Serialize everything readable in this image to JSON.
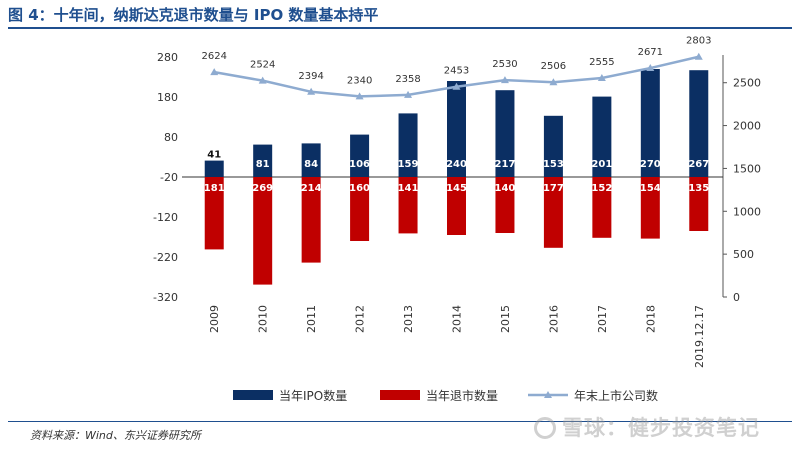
{
  "title": "图 4：十年间，纳斯达克退市数量与 IPO 数量基本持平",
  "source": "资料来源：Wind、东兴证券研究所",
  "watermark": "雪球：健步投资笔记",
  "colors": {
    "ipo": "#0b2f63",
    "delist": "#c00000",
    "listed": "#8eabd0",
    "title": "#1f4f8f"
  },
  "chart_data": {
    "type": "bar",
    "categories": [
      "2009",
      "2010",
      "2011",
      "2012",
      "2013",
      "2014",
      "2015",
      "2016",
      "2017",
      "2018",
      "2019.12.17"
    ],
    "series": [
      {
        "name": "当年IPO数量",
        "type": "bar",
        "axis": "left",
        "values": [
          41,
          81,
          84,
          106,
          159,
          240,
          217,
          153,
          201,
          270,
          267
        ]
      },
      {
        "name": "当年退市数量",
        "type": "bar",
        "axis": "left",
        "values": [
          181,
          269,
          214,
          160,
          141,
          145,
          140,
          177,
          152,
          154,
          135
        ]
      },
      {
        "name": "年末上市公司数",
        "type": "line",
        "axis": "right",
        "values": [
          2624,
          2524,
          2394,
          2340,
          2358,
          2453,
          2530,
          2506,
          2555,
          2671,
          2803
        ]
      }
    ],
    "y_left": {
      "range": [
        -320,
        280
      ],
      "ticks": [
        280,
        180,
        80,
        -20,
        -120,
        -220,
        -320
      ]
    },
    "y_right": {
      "range": [
        0,
        2800
      ],
      "ticks": [
        0,
        500,
        1000,
        1500,
        2000,
        2500
      ]
    },
    "legend_position": "bottom"
  }
}
